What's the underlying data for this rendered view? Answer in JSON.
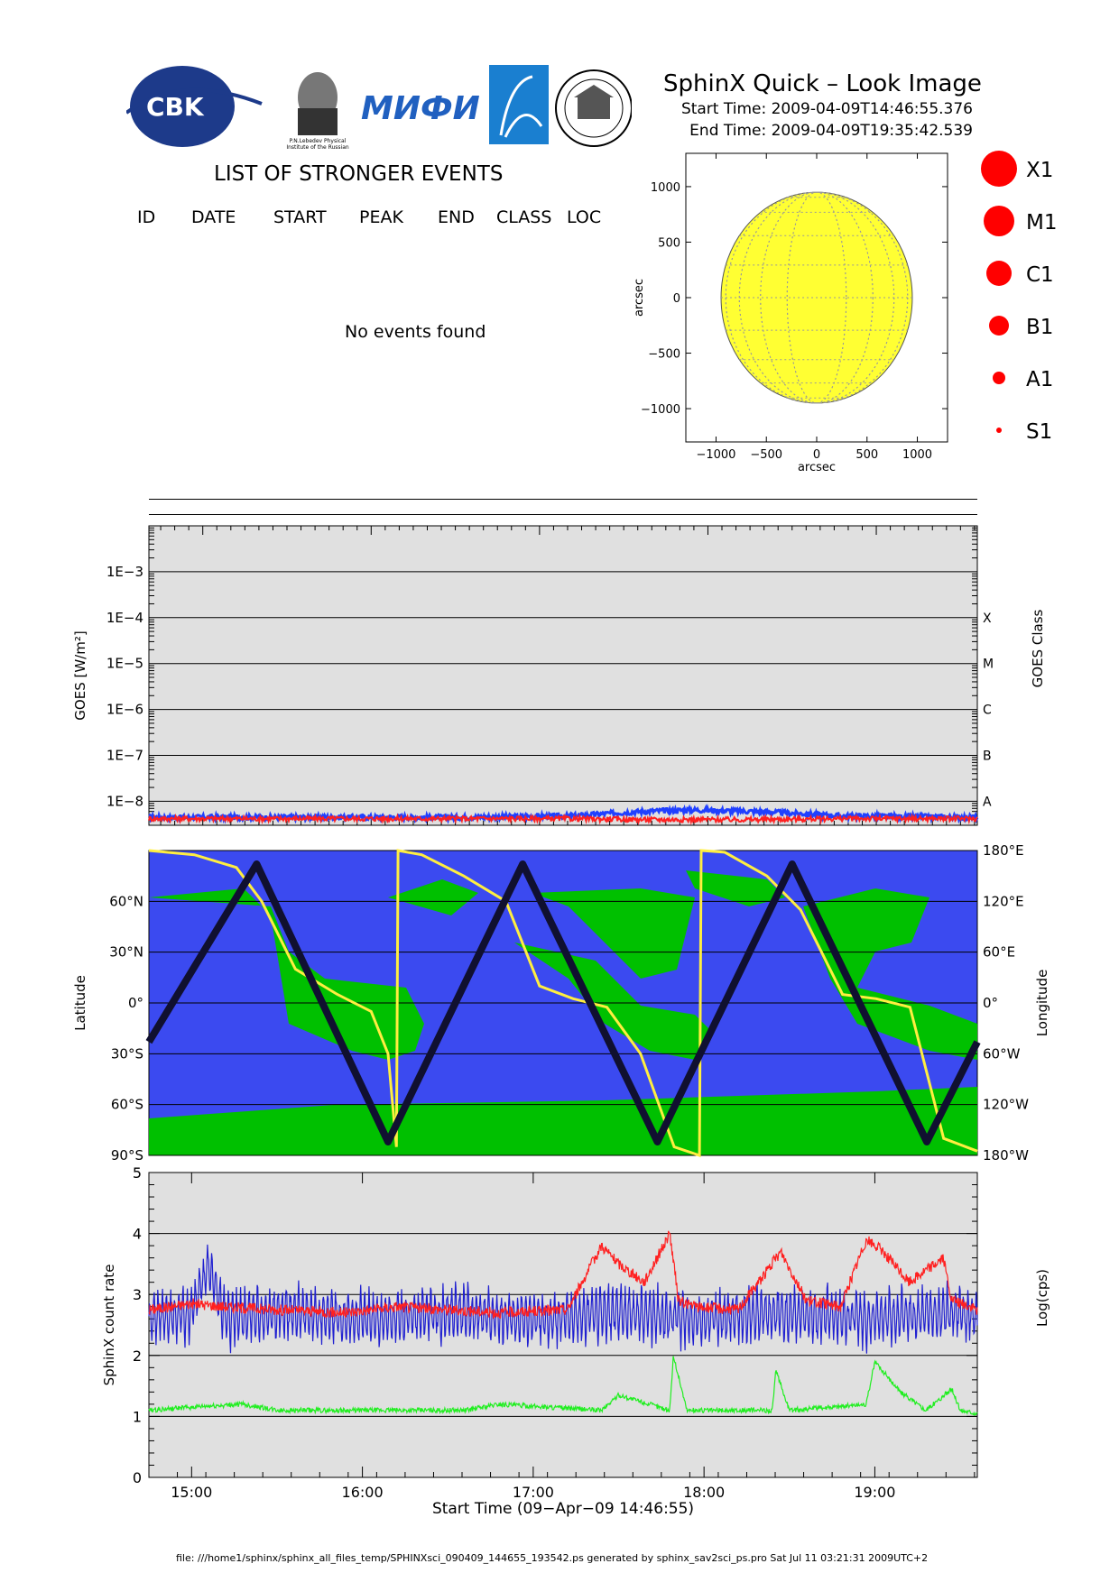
{
  "header": {
    "logos": [
      {
        "name": "cbk-pan-logo",
        "text": "CBK"
      },
      {
        "name": "lebedev-institute-logo",
        "text": "P.N.Lebedev Physical Institute of the Russian Academy of Science"
      },
      {
        "name": "miphi-logo",
        "text": "МИФИ"
      },
      {
        "name": "rocket-logo",
        "text": ""
      },
      {
        "name": "university-seal-logo",
        "text": ""
      }
    ],
    "title": "SphinX Quick – Look Image",
    "start_time": "Start Time: 2009-04-09T14:46:55.376",
    "end_time": "End Time: 2009-04-09T19:35:42.539"
  },
  "events": {
    "title": "LIST OF STRONGER EVENTS",
    "columns": [
      "ID",
      "DATE",
      "START",
      "PEAK",
      "END",
      "CLASS",
      "LOC"
    ],
    "empty_message": "No events found"
  },
  "flare_scale": [
    {
      "label": "X1"
    },
    {
      "label": "M1"
    },
    {
      "label": "C1"
    },
    {
      "label": "B1"
    },
    {
      "label": "A1"
    },
    {
      "label": "S1"
    }
  ],
  "colors": {
    "sun": "#ffff33",
    "flare_marker": "#ff0000",
    "panel_bg": "#e0e0e0",
    "map_ocean": "#3b4af0",
    "map_land": "#00c000",
    "goes_long": "#2040ff",
    "goes_short": "#ff2020",
    "sphinx_red": "#ff2020",
    "sphinx_blue": "#2020d0",
    "sphinx_green": "#20ee20",
    "longitude_line": "#ffee40",
    "orbit_track": "#101030"
  },
  "chart_data": [
    {
      "type": "scatter",
      "name": "sun-disk",
      "title": "",
      "xlabel": "arcsec",
      "ylabel": "arcsec",
      "xlim": [
        -1300,
        1300
      ],
      "ylim": [
        -1300,
        1300
      ],
      "xticks": [
        -1000,
        -500,
        0,
        500,
        1000
      ],
      "xtick_labels": [
        "−1000",
        "−500",
        "0",
        "500",
        "1000"
      ],
      "yticks": [
        1000,
        500,
        0,
        -500,
        -1000
      ],
      "ytick_labels": [
        "1000",
        "500",
        "0",
        "−500",
        "−1000"
      ],
      "disk_radius": 950,
      "grid": true,
      "points": []
    },
    {
      "type": "line",
      "name": "goes-flux",
      "title": "",
      "ylabel": "GOES [W/m²]",
      "y2label": "GOES Class",
      "yscale": "log",
      "ylim": [
        3e-09,
        0.01
      ],
      "yticks": [
        0.001,
        0.0001,
        1e-05,
        1e-06,
        1e-07,
        1e-08
      ],
      "ytick_labels": [
        "1E−3",
        "1E−4",
        "1E−5",
        "1E−6",
        "1E−7",
        "1E−8"
      ],
      "class_levels": [
        {
          "label": "X",
          "value": 0.0001
        },
        {
          "label": "M",
          "value": 1e-05
        },
        {
          "label": "C",
          "value": 1e-06
        },
        {
          "label": "B",
          "value": 1e-07
        },
        {
          "label": "A",
          "value": 1e-08
        }
      ],
      "xlim": [
        14.68,
        19.6
      ],
      "series": [
        {
          "name": "",
          "color": "#2040ff",
          "x": [
            14.68,
            15.5,
            16.5,
            17.2,
            17.6,
            17.9,
            18.3,
            18.8,
            19.6
          ],
          "values": [
            4.5e-09,
            4.5e-09,
            4.5e-09,
            4.8e-09,
            6e-09,
            6.5e-09,
            6e-09,
            4.8e-09,
            4.5e-09
          ]
        },
        {
          "name": "",
          "color": "#ff2020",
          "x": [
            14.68,
            15.5,
            16.5,
            17.2,
            17.6,
            17.9,
            18.3,
            18.8,
            19.6
          ],
          "values": [
            4.2e-09,
            4.2e-09,
            4.2e-09,
            4.2e-09,
            4e-09,
            4e-09,
            4e-09,
            4.2e-09,
            4.2e-09
          ]
        }
      ]
    },
    {
      "type": "line",
      "name": "orbit-map",
      "title": "",
      "ylabel": "Latitude",
      "y2label": "Longitude",
      "ylim": [
        -90,
        90
      ],
      "yticks": [
        60,
        30,
        0,
        -30,
        -60,
        -90
      ],
      "ytick_labels": [
        "60°N",
        "30°N",
        "0°",
        "30°S",
        "60°S",
        "90°S"
      ],
      "y2ticks": [
        "180°E",
        "120°E",
        "60°E",
        "0°",
        "60°W",
        "120°W",
        "180°W"
      ],
      "xlim": [
        14.68,
        19.6
      ],
      "series": [
        {
          "name": "",
          "color": "#101030",
          "x": [
            14.68,
            15.32,
            16.1,
            16.9,
            17.7,
            18.5,
            19.3,
            19.6
          ],
          "values": [
            -23,
            82,
            -82,
            82,
            -82,
            82,
            -82,
            -23
          ]
        },
        {
          "name": "",
          "color": "#ffee40",
          "x": [
            14.68,
            14.95,
            15.2,
            15.35,
            15.55,
            15.8,
            16.0,
            16.1,
            16.15,
            16.16,
            16.3,
            16.55,
            16.8,
            17.0,
            17.2,
            17.4,
            17.6,
            17.8,
            17.95,
            17.96,
            18.1,
            18.35,
            18.55,
            18.8,
            19.0,
            19.2,
            19.4,
            19.6
          ],
          "values": [
            180,
            175,
            160,
            120,
            40,
            10,
            -10,
            -60,
            -170,
            180,
            175,
            150,
            120,
            20,
            5,
            -5,
            -60,
            -170,
            -180,
            180,
            178,
            150,
            110,
            10,
            5,
            -5,
            -160,
            -175
          ]
        }
      ]
    },
    {
      "type": "line",
      "name": "sphinx-count-rate",
      "title": "",
      "xlabel": "Start Time (09−Apr−09 14:46:55)",
      "ylabel": "SphinX count rate",
      "y2label": "Log(cps)",
      "ylim": [
        0,
        5
      ],
      "yticks": [
        0,
        1,
        2,
        3,
        4,
        5
      ],
      "xlim": [
        14.75,
        19.6
      ],
      "xticks": [
        15,
        16,
        17,
        18,
        19
      ],
      "xtick_labels": [
        "15:00",
        "16:00",
        "17:00",
        "18:00",
        "19:00"
      ],
      "series": [
        {
          "name": "",
          "color": "#ff2020",
          "x": [
            14.75,
            15.0,
            15.2,
            15.5,
            15.9,
            16.2,
            16.5,
            16.8,
            17.2,
            17.4,
            17.5,
            17.65,
            17.8,
            17.85,
            17.95,
            18.2,
            18.45,
            18.6,
            18.8,
            18.95,
            19.05,
            19.2,
            19.4,
            19.45,
            19.6
          ],
          "values": [
            2.75,
            2.85,
            2.8,
            2.75,
            2.7,
            2.8,
            2.75,
            2.7,
            2.75,
            3.8,
            3.5,
            3.2,
            4.0,
            2.9,
            2.8,
            2.75,
            3.7,
            2.9,
            2.8,
            3.9,
            3.7,
            3.2,
            3.6,
            2.9,
            2.75
          ]
        },
        {
          "name": "",
          "color": "#2020d0",
          "x": [
            14.75,
            15.0,
            15.1,
            15.2,
            15.5,
            16.0,
            16.5,
            17.0,
            17.5,
            18.0,
            18.5,
            19.0,
            19.5,
            19.6
          ],
          "values": [
            2.6,
            2.7,
            3.5,
            2.6,
            2.7,
            2.6,
            2.7,
            2.6,
            2.7,
            2.6,
            2.7,
            2.6,
            2.7,
            2.6
          ]
        },
        {
          "name": "",
          "color": "#20ee20",
          "x": [
            14.75,
            15.0,
            15.3,
            15.5,
            16.0,
            16.6,
            16.8,
            17.4,
            17.5,
            17.8,
            17.82,
            17.9,
            18.4,
            18.42,
            18.5,
            18.95,
            19.0,
            19.15,
            19.3,
            19.45,
            19.5,
            19.6
          ],
          "values": [
            1.1,
            1.15,
            1.2,
            1.1,
            1.1,
            1.1,
            1.2,
            1.1,
            1.35,
            1.1,
            2.0,
            1.1,
            1.1,
            1.75,
            1.1,
            1.2,
            1.9,
            1.4,
            1.1,
            1.45,
            1.1,
            1.05
          ]
        }
      ]
    }
  ],
  "footer": {
    "text": "file: ///home1/sphinx/sphinx_all_files_temp/SPHINXsci_090409_144655_193542.ps generated by sphinx_sav2sci_ps.pro Sat Jul 11 03:21:31 2009UTC+2"
  }
}
